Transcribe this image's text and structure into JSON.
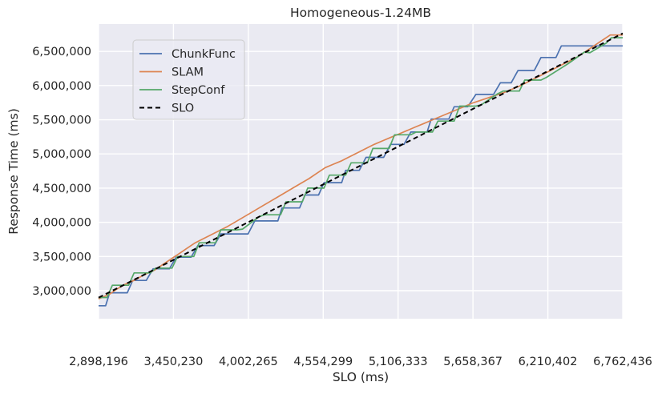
{
  "chart_data": {
    "type": "line",
    "title": "Homogeneous-1.24MB",
    "xlabel": "SLO (ms)",
    "ylabel": "Response Time (ms)",
    "xlim": [
      2898196,
      6762436
    ],
    "ylim": [
      2590000,
      6900000
    ],
    "grid": true,
    "legend_position": "upper-left",
    "x_ticks": [
      2898196,
      3450230,
      4002265,
      4554299,
      5106333,
      5658367,
      6210402,
      6762436
    ],
    "x_tick_labels": [
      "2,898,196",
      "3,450,230",
      "4,002,265",
      "4,554,299",
      "5,106,333",
      "5,658,367",
      "6,210,402",
      "6,762,436"
    ],
    "y_ticks": [
      3000000,
      3500000,
      4000000,
      4500000,
      5000000,
      5500000,
      6000000,
      6500000
    ],
    "y_tick_labels": [
      "3,000,000",
      "3,500,000",
      "4,000,000",
      "4,500,000",
      "5,000,000",
      "5,500,000",
      "6,000,000",
      "6,500,000"
    ],
    "series": [
      {
        "name": "ChunkFunc",
        "color": "#4c72b0",
        "dash": "solid",
        "x": [
          2898196,
          2950000,
          2980000,
          3110000,
          3150000,
          3250000,
          3300000,
          3420000,
          3470000,
          3580000,
          3630000,
          3750000,
          3800000,
          3950000,
          4000000,
          4050000,
          4100000,
          4220000,
          4250000,
          4380000,
          4420000,
          4520000,
          4560000,
          4690000,
          4720000,
          4820000,
          4870000,
          5000000,
          5050000,
          5150000,
          5200000,
          5320000,
          5350000,
          5480000,
          5520000,
          5620000,
          5680000,
          5810000,
          5860000,
          5940000,
          5990000,
          6110000,
          6160000,
          6270000,
          6310000,
          6420000,
          6470000,
          6590000,
          6640000,
          6762436
        ],
        "y": [
          2780000,
          2780000,
          2970000,
          2970000,
          3150000,
          3150000,
          3320000,
          3320000,
          3490000,
          3490000,
          3660000,
          3660000,
          3830000,
          3830000,
          3830000,
          4020000,
          4020000,
          4020000,
          4210000,
          4210000,
          4400000,
          4400000,
          4580000,
          4580000,
          4760000,
          4760000,
          4950000,
          4950000,
          5140000,
          5140000,
          5320000,
          5320000,
          5510000,
          5510000,
          5690000,
          5690000,
          5870000,
          5870000,
          6040000,
          6040000,
          6220000,
          6220000,
          6410000,
          6410000,
          6580000,
          6580000,
          6580000,
          6580000,
          6580000,
          6580000
        ]
      },
      {
        "name": "SLAM",
        "color": "#dd8452",
        "dash": "solid",
        "x": [
          2898196,
          2980000,
          3030000,
          3090000,
          3170000,
          3230000,
          3310000,
          3370000,
          3430000,
          3490000,
          3550000,
          3610000,
          3670000,
          3730000,
          3790000,
          3850000,
          3910000,
          3970000,
          4030000,
          4090000,
          4150000,
          4210000,
          4270000,
          4330000,
          4390000,
          4450000,
          4510000,
          4570000,
          4630000,
          4690000,
          4750000,
          4810000,
          4870000,
          4930000,
          4990000,
          5050000,
          5110000,
          5170000,
          5230000,
          5290000,
          5350000,
          5410000,
          5470000,
          5530000,
          5590000,
          5650000,
          5710000,
          5770000,
          5830000,
          5890000,
          5950000,
          6010000,
          6070000,
          6130000,
          6190000,
          6250000,
          6310000,
          6370000,
          6430000,
          6490000,
          6550000,
          6610000,
          6670000,
          6762436
        ],
        "y": [
          2880000,
          2950000,
          3020000,
          3090000,
          3160000,
          3230000,
          3300000,
          3380000,
          3460000,
          3540000,
          3620000,
          3700000,
          3760000,
          3820000,
          3880000,
          3940000,
          4010000,
          4080000,
          4150000,
          4220000,
          4290000,
          4360000,
          4430000,
          4500000,
          4570000,
          4640000,
          4720000,
          4800000,
          4850000,
          4900000,
          4960000,
          5020000,
          5080000,
          5140000,
          5190000,
          5240000,
          5290000,
          5340000,
          5390000,
          5440000,
          5490000,
          5540000,
          5590000,
          5640000,
          5690000,
          5740000,
          5780000,
          5820000,
          5860000,
          5900000,
          5950000,
          6000000,
          6060000,
          6120000,
          6180000,
          6240000,
          6300000,
          6360000,
          6420000,
          6500000,
          6580000,
          6660000,
          6740000,
          6740000
        ]
      },
      {
        "name": "StepConf",
        "color": "#55a868",
        "dash": "solid",
        "x": [
          2898196,
          2960000,
          3000000,
          3120000,
          3160000,
          3280000,
          3320000,
          3440000,
          3480000,
          3600000,
          3640000,
          3760000,
          3800000,
          3920000,
          3960000,
          4080000,
          4120000,
          4240000,
          4280000,
          4400000,
          4440000,
          4560000,
          4600000,
          4720000,
          4760000,
          4880000,
          4920000,
          5040000,
          5080000,
          5200000,
          5240000,
          5360000,
          5400000,
          5520000,
          5560000,
          5680000,
          5720000,
          5840000,
          5880000,
          6000000,
          6040000,
          6160000,
          6200000,
          6320000,
          6360000,
          6480000,
          6520000,
          6640000,
          6680000,
          6762436
        ],
        "y": [
          2900000,
          2900000,
          3080000,
          3080000,
          3260000,
          3260000,
          3330000,
          3330000,
          3500000,
          3500000,
          3700000,
          3700000,
          3890000,
          3890000,
          3900000,
          4080000,
          4110000,
          4110000,
          4300000,
          4300000,
          4500000,
          4500000,
          4690000,
          4690000,
          4870000,
          4870000,
          5080000,
          5080000,
          5280000,
          5280000,
          5320000,
          5320000,
          5480000,
          5480000,
          5700000,
          5700000,
          5720000,
          5880000,
          5920000,
          5920000,
          6080000,
          6080000,
          6120000,
          6270000,
          6320000,
          6490000,
          6480000,
          6620000,
          6700000,
          6700000
        ]
      },
      {
        "name": "SLO",
        "color": "#000000",
        "dash": "dashed",
        "x": [
          2898196,
          6762436
        ],
        "y": [
          2898196,
          6762436
        ]
      }
    ]
  }
}
